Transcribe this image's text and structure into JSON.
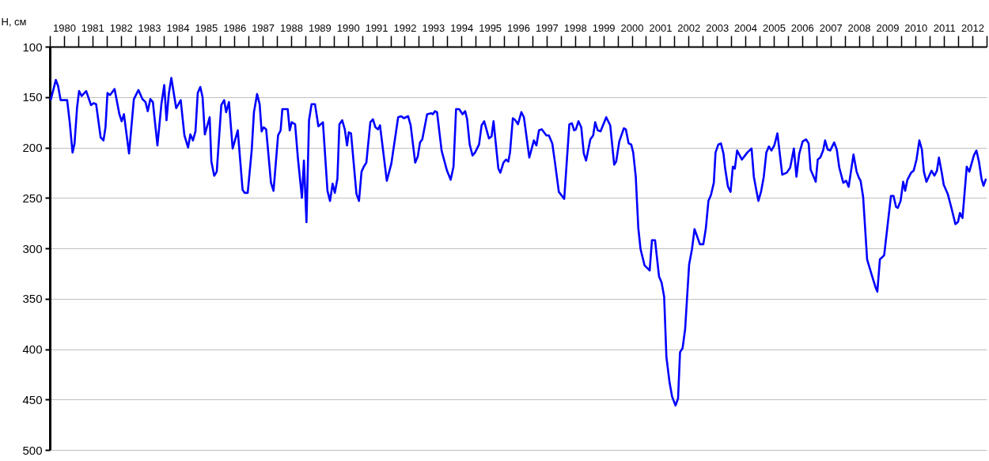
{
  "chart_data": {
    "type": "line",
    "ylabel": "Н, см",
    "color": "#0000ff",
    "grid": "y",
    "xlim": [
      1980,
      2013
    ],
    "ylim": [
      500,
      100
    ],
    "yticks": [
      100,
      150,
      200,
      250,
      300,
      350,
      400,
      450,
      500
    ],
    "xticks": [
      {
        "value": 1980,
        "label": null
      },
      {
        "value": 1980.5,
        "label": "1980"
      },
      {
        "value": 1981,
        "label": null
      },
      {
        "value": 1981.5,
        "label": "1981"
      },
      {
        "value": 1982,
        "label": null
      },
      {
        "value": 1982.5,
        "label": "1982"
      },
      {
        "value": 1983,
        "label": null
      },
      {
        "value": 1983.5,
        "label": "1983"
      },
      {
        "value": 1984,
        "label": null
      },
      {
        "value": 1984.5,
        "label": "1984"
      },
      {
        "value": 1985,
        "label": null
      },
      {
        "value": 1985.5,
        "label": "1985"
      },
      {
        "value": 1986,
        "label": null
      },
      {
        "value": 1986.5,
        "label": "1986"
      },
      {
        "value": 1987,
        "label": null
      },
      {
        "value": 1987.5,
        "label": "1987"
      },
      {
        "value": 1988,
        "label": null
      },
      {
        "value": 1988.5,
        "label": "1988"
      },
      {
        "value": 1989,
        "label": null
      },
      {
        "value": 1989.5,
        "label": "1989"
      },
      {
        "value": 1990,
        "label": null
      },
      {
        "value": 1990.5,
        "label": "1990"
      },
      {
        "value": 1991,
        "label": null
      },
      {
        "value": 1991.5,
        "label": "1991"
      },
      {
        "value": 1992,
        "label": null
      },
      {
        "value": 1992.5,
        "label": "1992"
      },
      {
        "value": 1993,
        "label": null
      },
      {
        "value": 1993.5,
        "label": "1993"
      },
      {
        "value": 1994,
        "label": null
      },
      {
        "value": 1994.5,
        "label": "1994"
      },
      {
        "value": 1995,
        "label": null
      },
      {
        "value": 1995.5,
        "label": "1995"
      },
      {
        "value": 1996,
        "label": null
      },
      {
        "value": 1996.5,
        "label": "1996"
      },
      {
        "value": 1997,
        "label": null
      },
      {
        "value": 1997.5,
        "label": "1997"
      },
      {
        "value": 1998,
        "label": null
      },
      {
        "value": 1998.5,
        "label": "1998"
      },
      {
        "value": 1999,
        "label": null
      },
      {
        "value": 1999.5,
        "label": "1999"
      },
      {
        "value": 2000,
        "label": null
      },
      {
        "value": 2000.5,
        "label": "2000"
      },
      {
        "value": 2001,
        "label": null
      },
      {
        "value": 2001.5,
        "label": "2001"
      },
      {
        "value": 2002,
        "label": null
      },
      {
        "value": 2002.5,
        "label": "2002"
      },
      {
        "value": 2003,
        "label": null
      },
      {
        "value": 2003.5,
        "label": "2003"
      },
      {
        "value": 2004,
        "label": null
      },
      {
        "value": 2004.5,
        "label": "2004"
      },
      {
        "value": 2005,
        "label": null
      },
      {
        "value": 2005.5,
        "label": "2005"
      },
      {
        "value": 2006,
        "label": null
      },
      {
        "value": 2006.5,
        "label": "2006"
      },
      {
        "value": 2007,
        "label": null
      },
      {
        "value": 2007.5,
        "label": "2007"
      },
      {
        "value": 2008,
        "label": null
      },
      {
        "value": 2008.5,
        "label": "2008"
      },
      {
        "value": 2009,
        "label": null
      },
      {
        "value": 2009.5,
        "label": "2009"
      },
      {
        "value": 2010,
        "label": null
      },
      {
        "value": 2010.5,
        "label": "2010"
      },
      {
        "value": 2011,
        "label": null
      },
      {
        "value": 2011.5,
        "label": "2011"
      },
      {
        "value": 2012,
        "label": null
      },
      {
        "value": 2012.5,
        "label": "2012"
      },
      {
        "value": 2013,
        "label": null
      }
    ],
    "x": [
      1980.03,
      1980.21,
      1980.29,
      1980.38,
      1980.61,
      1980.7,
      1980.8,
      1980.87,
      1980.96,
      1981.03,
      1981.12,
      1981.28,
      1981.45,
      1981.54,
      1981.63,
      1981.79,
      1981.89,
      1981.96,
      1982.03,
      1982.12,
      1982.28,
      1982.45,
      1982.53,
      1982.61,
      1982.79,
      1982.96,
      1983.12,
      1983.26,
      1983.37,
      1983.45,
      1983.54,
      1983.63,
      1983.79,
      1983.93,
      1984.03,
      1984.11,
      1984.19,
      1984.28,
      1984.45,
      1984.61,
      1984.74,
      1984.87,
      1984.95,
      1985.04,
      1985.13,
      1985.21,
      1985.3,
      1985.38,
      1985.46,
      1985.63,
      1985.69,
      1985.79,
      1985.88,
      1986.04,
      1986.14,
      1986.21,
      1986.31,
      1986.44,
      1986.62,
      1986.79,
      1986.86,
      1986.97,
      1987.11,
      1987.19,
      1987.3,
      1987.39,
      1987.46,
      1987.53,
      1987.62,
      1987.79,
      1987.88,
      1988.04,
      1988.13,
      1988.19,
      1988.38,
      1988.45,
      1988.52,
      1988.64,
      1988.74,
      1988.88,
      1988.95,
      1989.04,
      1989.13,
      1989.22,
      1989.34,
      1989.46,
      1989.62,
      1989.78,
      1989.87,
      1989.96,
      1990.04,
      1990.13,
      1990.2,
      1990.3,
      1990.39,
      1990.47,
      1990.53,
      1990.61,
      1990.8,
      1990.89,
      1990.98,
      1991.06,
      1991.15,
      1991.29,
      1991.38,
      1991.47,
      1991.56,
      1991.63,
      1991.87,
      1992.03,
      1992.27,
      1992.38,
      1992.47,
      1992.62,
      1992.71,
      1992.87,
      1992.96,
      1993.04,
      1993.12,
      1993.29,
      1993.43,
      1993.49,
      1993.57,
      1993.64,
      1993.8,
      1993.99,
      1994.12,
      1994.22,
      1994.31,
      1994.42,
      1994.54,
      1994.63,
      1994.7,
      1994.79,
      1994.89,
      1994.98,
      1995.12,
      1995.21,
      1995.3,
      1995.47,
      1995.56,
      1995.63,
      1995.8,
      1995.87,
      1995.98,
      1996.07,
      1996.15,
      1996.21,
      1996.31,
      1996.4,
      1996.49,
      1996.61,
      1996.7,
      1996.89,
      1997.05,
      1997.14,
      1997.23,
      1997.33,
      1997.49,
      1997.58,
      1997.7,
      1997.79,
      1997.93,
      1998.12,
      1998.3,
      1998.39,
      1998.47,
      1998.53,
      1998.62,
      1998.72,
      1998.81,
      1998.89,
      1999.04,
      1999.14,
      1999.21,
      1999.3,
      1999.4,
      1999.6,
      1999.74,
      1999.88,
      1999.95,
      2000.06,
      2000.22,
      2000.29,
      2000.39,
      2000.48,
      2000.55,
      2000.64,
      2000.73,
      2000.81,
      2000.95,
      2001.13,
      2001.21,
      2001.32,
      2001.46,
      2001.55,
      2001.64,
      2001.72,
      2001.83,
      2001.92,
      2002.04,
      2002.13,
      2002.2,
      2002.29,
      2002.38,
      2002.52,
      2002.62,
      2002.71,
      2002.9,
      2003.02,
      2003.11,
      2003.2,
      2003.29,
      2003.39,
      2003.45,
      2003.55,
      2003.64,
      2003.73,
      2003.79,
      2003.89,
      2003.98,
      2004.06,
      2004.13,
      2004.21,
      2004.38,
      2004.57,
      2004.72,
      2004.8,
      2004.89,
      2004.96,
      2005.06,
      2005.15,
      2005.24,
      2005.33,
      2005.42,
      2005.52,
      2005.63,
      2005.8,
      2005.96,
      2006.08,
      2006.21,
      2006.3,
      2006.4,
      2006.52,
      2006.64,
      2006.73,
      2006.8,
      2006.98,
      2007.05,
      2007.14,
      2007.24,
      2007.31,
      2007.4,
      2007.49,
      2007.63,
      2007.72,
      2007.81,
      2007.95,
      2008.05,
      2008.14,
      2008.31,
      2008.42,
      2008.5,
      2008.56,
      2008.65,
      2008.79,
      2008.98,
      2009.09,
      2009.15,
      2009.24,
      2009.39,
      2009.63,
      2009.72,
      2009.81,
      2009.87,
      2009.97,
      2010.06,
      2010.13,
      2010.21,
      2010.34,
      2010.43,
      2010.53,
      2010.63,
      2010.72,
      2010.79,
      2010.88,
      2011.06,
      2011.16,
      2011.25,
      2011.32,
      2011.42,
      2011.49,
      2011.63,
      2011.76,
      2011.9,
      2011.99,
      2012.06,
      2012.15,
      2012.3,
      2012.39,
      2012.55,
      2012.64,
      2012.73,
      2012.82,
      2012.89,
      2012.98
    ],
    "values": [
      153,
      133,
      139,
      153,
      153,
      175,
      205,
      196,
      160,
      144,
      149,
      144,
      158,
      156,
      157,
      190,
      193,
      180,
      146,
      148,
      142,
      167,
      174,
      167,
      206,
      152,
      143,
      152,
      155,
      164,
      152,
      155,
      198,
      157,
      138,
      173,
      147,
      131,
      161,
      153,
      188,
      200,
      187,
      193,
      184,
      146,
      140,
      150,
      187,
      170,
      214,
      228,
      224,
      158,
      153,
      165,
      155,
      201,
      183,
      242,
      245,
      245,
      203,
      165,
      147,
      157,
      184,
      180,
      182,
      235,
      243,
      188,
      183,
      162,
      162,
      183,
      175,
      177,
      211,
      250,
      213,
      274,
      173,
      157,
      157,
      179,
      175,
      243,
      253,
      236,
      245,
      231,
      177,
      173,
      182,
      198,
      185,
      186,
      246,
      253,
      224,
      219,
      215,
      175,
      172,
      180,
      182,
      178,
      233,
      216,
      170,
      169,
      171,
      169,
      178,
      215,
      209,
      195,
      192,
      167,
      166,
      167,
      164,
      165,
      203,
      223,
      232,
      219,
      162,
      162,
      167,
      164,
      172,
      197,
      208,
      205,
      197,
      178,
      174,
      191,
      189,
      174,
      221,
      225,
      215,
      212,
      214,
      205,
      171,
      173,
      177,
      165,
      170,
      210,
      193,
      198,
      183,
      182,
      188,
      188,
      196,
      214,
      244,
      251,
      177,
      176,
      183,
      182,
      174,
      180,
      206,
      213,
      192,
      188,
      175,
      183,
      184,
      170,
      178,
      217,
      214,
      194,
      181,
      182,
      196,
      197,
      205,
      229,
      280,
      301,
      317,
      322,
      292,
      292,
      328,
      334,
      348,
      408,
      433,
      447,
      456,
      449,
      403,
      399,
      380,
      316,
      301,
      281,
      296,
      296,
      280,
      253,
      247,
      235,
      205,
      197,
      196,
      206,
      221,
      239,
      244,
      219,
      221,
      203,
      212,
      205,
      201,
      229,
      243,
      253,
      243,
      229,
      205,
      199,
      203,
      198,
      186,
      227,
      225,
      220,
      201,
      229,
      206,
      194,
      192,
      196,
      222,
      234,
      212,
      210,
      203,
      193,
      202,
      203,
      195,
      202,
      220,
      235,
      233,
      239,
      207,
      224,
      230,
      233,
      249,
      311,
      329,
      339,
      343,
      311,
      307,
      248,
      248,
      259,
      260,
      253,
      234,
      243,
      232,
      225,
      223,
      212,
      193,
      202,
      224,
      234,
      223,
      228,
      223,
      210,
      225,
      237,
      246,
      260,
      276,
      274,
      265,
      270,
      219,
      224,
      208,
      203,
      214,
      231,
      238,
      231
    ]
  }
}
